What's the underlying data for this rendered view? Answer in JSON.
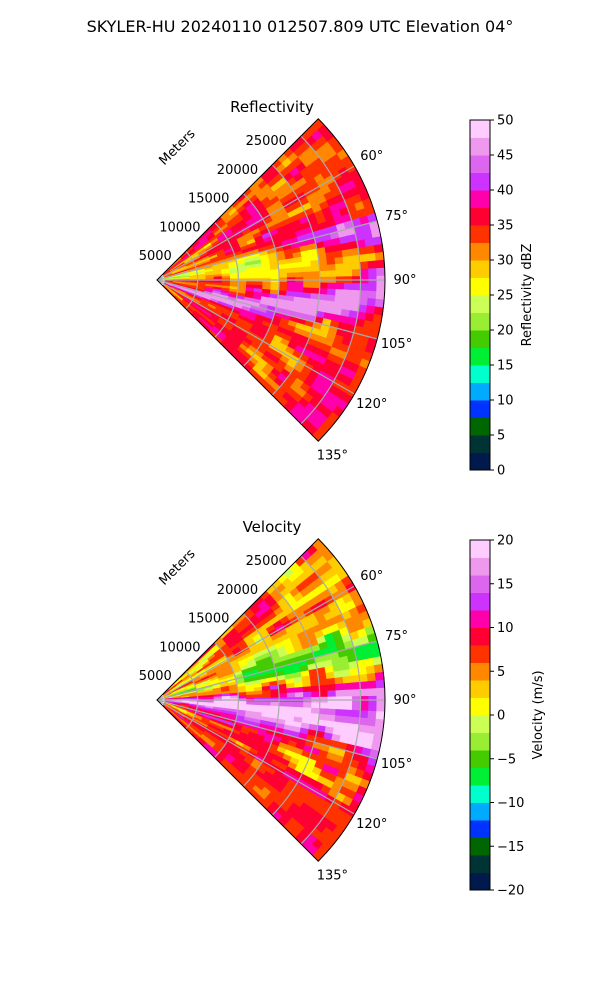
{
  "figure": {
    "suptitle": "SKYLER-HU  20240110  012507.809 UTC Elevation 04°"
  },
  "chart_data": [
    {
      "type": "heatmap",
      "projection": "polar-sector",
      "title": "Reflectivity",
      "radial_label": "Meters",
      "radial_ticks": [
        "5000",
        "10000",
        "15000",
        "20000",
        "25000"
      ],
      "radial_range": [
        0,
        28000
      ],
      "azimuth_range_deg": [
        45,
        135
      ],
      "angle_ticks": [
        "60°",
        "75°",
        "90°",
        "105°",
        "120°",
        "135°"
      ],
      "grid": true,
      "colorbar": {
        "label": "Reflectivity dBZ",
        "range": [
          0,
          50
        ],
        "ticks": [
          "0",
          "5",
          "10",
          "15",
          "20",
          "25",
          "30",
          "35",
          "40",
          "45",
          "50"
        ]
      }
    },
    {
      "type": "heatmap",
      "projection": "polar-sector",
      "title": "Velocity",
      "radial_label": "Meters",
      "radial_ticks": [
        "5000",
        "10000",
        "15000",
        "20000",
        "25000"
      ],
      "radial_range": [
        0,
        28000
      ],
      "azimuth_range_deg": [
        45,
        135
      ],
      "angle_ticks": [
        "60°",
        "75°",
        "90°",
        "105°",
        "120°",
        "135°"
      ],
      "grid": true,
      "colorbar": {
        "label": "Velocity (m/s)",
        "range": [
          -20,
          20
        ],
        "ticks": [
          "−20",
          "−15",
          "−10",
          "−5",
          "0",
          "5",
          "10",
          "15",
          "20"
        ]
      }
    }
  ],
  "colormap_stops": [
    "#001a4d",
    "#003333",
    "#006600",
    "#0033ff",
    "#00aaff",
    "#00ffcc",
    "#00ee33",
    "#44cc00",
    "#99ee33",
    "#ccff55",
    "#ffff00",
    "#ffcc00",
    "#ff8800",
    "#ff3300",
    "#ff0033",
    "#ff00aa",
    "#cc33ff",
    "#dd66ee",
    "#ee99ee",
    "#ffccff"
  ]
}
